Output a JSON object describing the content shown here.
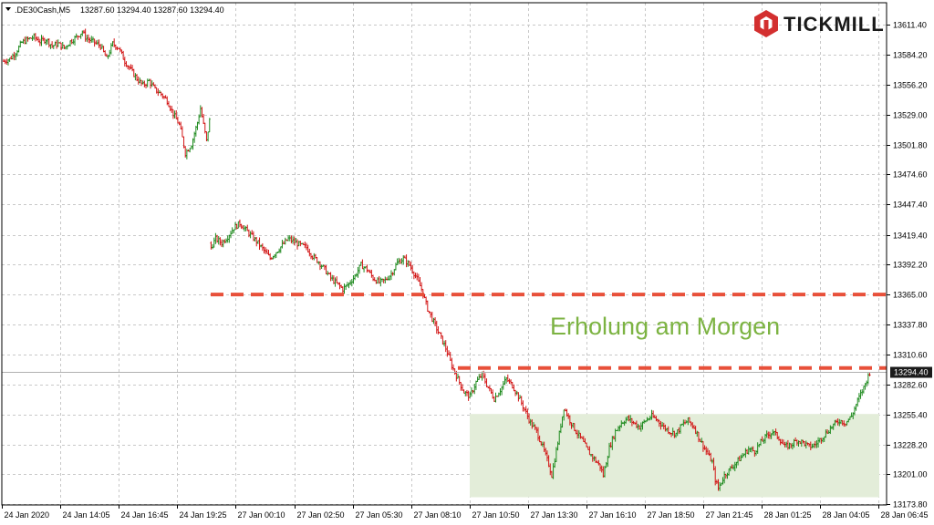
{
  "header": {
    "symbol": ".DE30Cash,M5",
    "ohlc": "13287.60 13294.40 13287.60 13294.40"
  },
  "logo": {
    "text": "TICKMILL"
  },
  "annotation": {
    "text": "Erholung am Morgen",
    "color": "#7cb342"
  },
  "colors": {
    "up": "#1e8a1e",
    "down": "#d21414",
    "grid": "#c8c8c8",
    "dashed_level": "#e8503a",
    "zone_fill": "#e3edd9",
    "price_tag_bg": "#1a1a1a",
    "logo_red": "#d32f2f"
  },
  "chart_data": {
    "type": "candlestick",
    "title": ".DE30Cash,M5",
    "y_ticks": [
      13611.4,
      13584.2,
      13556.2,
      13529.0,
      13501.8,
      13474.6,
      13447.4,
      13419.4,
      13392.2,
      13365.0,
      13337.8,
      13310.6,
      13282.6,
      13255.4,
      13228.2,
      13201.0,
      13173.8
    ],
    "x_ticks": [
      "24 Jan 2020",
      "24 Jan 14:05",
      "24 Jan 16:45",
      "24 Jan 19:25",
      "27 Jan 00:10",
      "27 Jan 02:50",
      "27 Jan 05:30",
      "27 Jan 08:10",
      "27 Jan 10:50",
      "27 Jan 13:30",
      "27 Jan 16:10",
      "27 Jan 18:50",
      "27 Jan 21:45",
      "28 Jan 01:25",
      "28 Jan 04:05",
      "28 Jan 06:45"
    ],
    "ylim": [
      13170,
      13624
    ],
    "current_price": 13294.4,
    "levels": [
      13365.0,
      13298.0
    ],
    "zone": {
      "y_low": 13180,
      "y_high": 13256,
      "start_label": "27 Jan 10:50",
      "end_label": "28 Jan 06:45"
    },
    "price_path": [
      [
        0,
        13578
      ],
      [
        4,
        13580
      ],
      [
        8,
        13586
      ],
      [
        12,
        13595
      ],
      [
        16,
        13598
      ],
      [
        20,
        13600
      ],
      [
        24,
        13596
      ],
      [
        28,
        13598
      ],
      [
        32,
        13592
      ],
      [
        36,
        13594
      ],
      [
        40,
        13590
      ],
      [
        44,
        13596
      ],
      [
        48,
        13600
      ],
      [
        52,
        13605
      ],
      [
        54,
        13600
      ],
      [
        56,
        13598
      ],
      [
        60,
        13595
      ],
      [
        64,
        13592
      ],
      [
        66,
        13586
      ],
      [
        68,
        13580
      ],
      [
        72,
        13594
      ],
      [
        76,
        13590
      ],
      [
        80,
        13578
      ],
      [
        84,
        13570
      ],
      [
        88,
        13562
      ],
      [
        92,
        13556
      ],
      [
        96,
        13560
      ],
      [
        100,
        13552
      ],
      [
        104,
        13548
      ],
      [
        108,
        13542
      ],
      [
        112,
        13530
      ],
      [
        116,
        13520
      ],
      [
        118,
        13508
      ],
      [
        120,
        13494
      ],
      [
        124,
        13502
      ],
      [
        126,
        13512
      ],
      [
        128,
        13522
      ],
      [
        130,
        13535
      ],
      [
        132,
        13520
      ],
      [
        134,
        13505
      ],
      [
        136,
        13524
      ],
      [
        137,
        13408
      ],
      [
        140,
        13416
      ],
      [
        144,
        13412
      ],
      [
        148,
        13418
      ],
      [
        152,
        13426
      ],
      [
        156,
        13430
      ],
      [
        160,
        13424
      ],
      [
        164,
        13418
      ],
      [
        168,
        13412
      ],
      [
        172,
        13405
      ],
      [
        176,
        13398
      ],
      [
        180,
        13404
      ],
      [
        184,
        13410
      ],
      [
        188,
        13416
      ],
      [
        192,
        13413
      ],
      [
        196,
        13410
      ],
      [
        200,
        13408
      ],
      [
        204,
        13400
      ],
      [
        208,
        13395
      ],
      [
        212,
        13388
      ],
      [
        216,
        13380
      ],
      [
        220,
        13375
      ],
      [
        224,
        13370
      ],
      [
        228,
        13375
      ],
      [
        232,
        13382
      ],
      [
        236,
        13392
      ],
      [
        240,
        13388
      ],
      [
        244,
        13380
      ],
      [
        248,
        13376
      ],
      [
        252,
        13378
      ],
      [
        256,
        13384
      ],
      [
        260,
        13394
      ],
      [
        264,
        13398
      ],
      [
        268,
        13392
      ],
      [
        272,
        13382
      ],
      [
        276,
        13370
      ],
      [
        280,
        13352
      ],
      [
        284,
        13340
      ],
      [
        288,
        13328
      ],
      [
        292,
        13316
      ],
      [
        296,
        13300
      ],
      [
        300,
        13288
      ],
      [
        304,
        13276
      ],
      [
        308,
        13272
      ],
      [
        312,
        13285
      ],
      [
        316,
        13292
      ],
      [
        320,
        13280
      ],
      [
        324,
        13270
      ],
      [
        328,
        13278
      ],
      [
        332,
        13288
      ],
      [
        336,
        13282
      ],
      [
        340,
        13272
      ],
      [
        344,
        13260
      ],
      [
        348,
        13248
      ],
      [
        352,
        13240
      ],
      [
        356,
        13226
      ],
      [
        360,
        13210
      ],
      [
        362,
        13200
      ],
      [
        366,
        13230
      ],
      [
        370,
        13262
      ],
      [
        374,
        13250
      ],
      [
        378,
        13240
      ],
      [
        382,
        13232
      ],
      [
        386,
        13222
      ],
      [
        390,
        13215
      ],
      [
        394,
        13208
      ],
      [
        396,
        13200
      ],
      [
        400,
        13225
      ],
      [
        404,
        13240
      ],
      [
        408,
        13248
      ],
      [
        412,
        13252
      ],
      [
        416,
        13248
      ],
      [
        420,
        13244
      ],
      [
        424,
        13250
      ],
      [
        428,
        13254
      ],
      [
        432,
        13250
      ],
      [
        436,
        13244
      ],
      [
        440,
        13240
      ],
      [
        444,
        13238
      ],
      [
        448,
        13246
      ],
      [
        452,
        13250
      ],
      [
        456,
        13244
      ],
      [
        460,
        13232
      ],
      [
        464,
        13222
      ],
      [
        468,
        13212
      ],
      [
        470,
        13196
      ],
      [
        472,
        13188
      ],
      [
        476,
        13200
      ],
      [
        480,
        13206
      ],
      [
        484,
        13212
      ],
      [
        488,
        13218
      ],
      [
        492,
        13224
      ],
      [
        496,
        13222
      ],
      [
        500,
        13230
      ],
      [
        504,
        13236
      ],
      [
        508,
        13240
      ],
      [
        512,
        13234
      ],
      [
        516,
        13226
      ],
      [
        520,
        13228
      ],
      [
        524,
        13232
      ],
      [
        528,
        13230
      ],
      [
        532,
        13226
      ],
      [
        536,
        13228
      ],
      [
        540,
        13234
      ],
      [
        544,
        13240
      ],
      [
        548,
        13246
      ],
      [
        552,
        13250
      ],
      [
        556,
        13248
      ],
      [
        560,
        13254
      ],
      [
        564,
        13268
      ],
      [
        568,
        13280
      ],
      [
        572,
        13294
      ]
    ],
    "grid": true
  }
}
